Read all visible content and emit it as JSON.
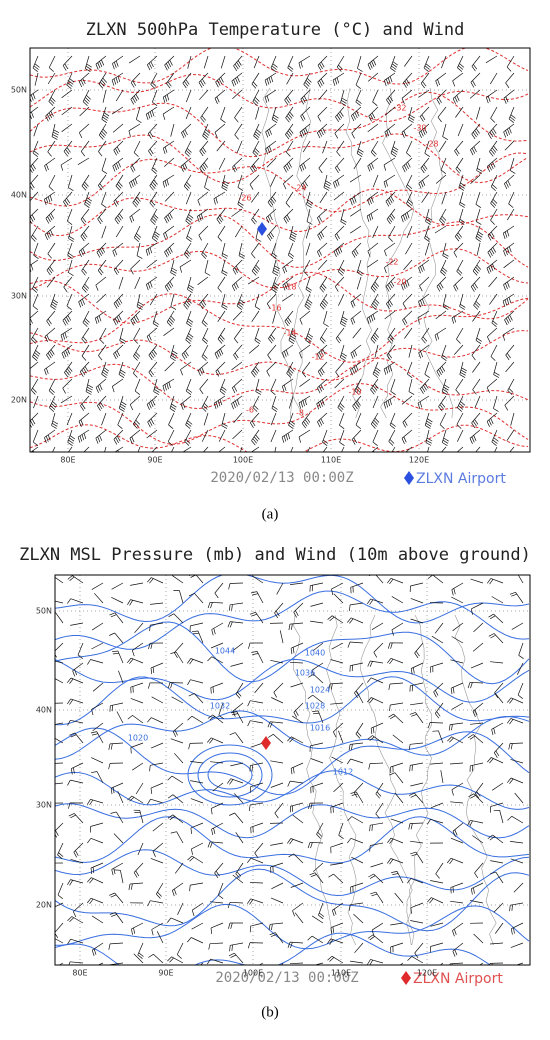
{
  "panels": [
    {
      "title": "ZLXN 500hPa Temperature (°C) and Wind",
      "lat_labels": [
        "50N",
        "40N",
        "30N",
        "20N"
      ],
      "lon_labels": [
        "80E",
        "90E",
        "100E",
        "110E",
        "120E"
      ],
      "contour_labels": [
        -32,
        -30,
        -28,
        -26,
        -24,
        -22,
        -20,
        -18,
        -16,
        -14,
        -12,
        -10,
        -8,
        -6
      ],
      "timestamp": "2020/02/13 00:00Z",
      "legend": "ZLXN Airport",
      "caption": "(a)"
    },
    {
      "title": "ZLXN MSL Pressure (mb) and Wind (10m above ground)",
      "lat_labels": [
        "50N",
        "40N",
        "30N",
        "20N"
      ],
      "lon_labels": [
        "80E",
        "90E",
        "100E",
        "110E",
        "120E"
      ],
      "contour_labels": [
        1044,
        1040,
        1036,
        1032,
        1028,
        1024,
        1020,
        1016,
        1012
      ],
      "timestamp": "2020/02/13 00:00Z",
      "legend": "ZLXN Airport",
      "caption": "(b)"
    }
  ]
}
